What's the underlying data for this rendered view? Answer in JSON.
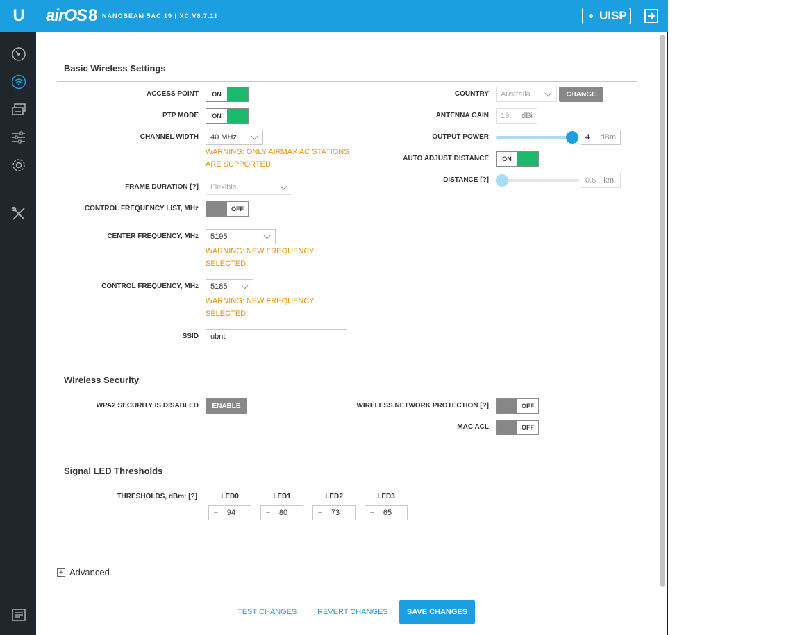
{
  "header": {
    "logo": "U",
    "brand": "airOS",
    "version": "8",
    "device": "NANOBEAM 5AC 19 | XC.V8.7.11",
    "uisp_label": "UISP",
    "icons": [
      "ubiquiti-logo-icon",
      "logout-icon"
    ]
  },
  "sidebar": {
    "items": [
      {
        "name": "dashboard",
        "icon": "gauge-icon"
      },
      {
        "name": "wireless",
        "icon": "wifi-icon"
      },
      {
        "name": "network",
        "icon": "network-icon"
      },
      {
        "name": "services",
        "icon": "sliders-icon"
      },
      {
        "name": "system",
        "icon": "gear-icon"
      },
      {
        "name": "tools",
        "icon": "tools-icon"
      },
      {
        "name": "log",
        "icon": "log-icon"
      }
    ]
  },
  "basic": {
    "title": "Basic Wireless Settings",
    "access_point_label": "ACCESS POINT",
    "access_point_state": "ON",
    "ptp_mode_label": "PTP MODE",
    "ptp_mode_state": "ON",
    "channel_width_label": "CHANNEL WIDTH",
    "channel_width_value": "40 MHz",
    "channel_width_warning_1": "WARNING: ONLY AIRMAX AC STATIONS",
    "channel_width_warning_2": "ARE SUPPORTED",
    "frame_duration_label": "FRAME DURATION [?]",
    "frame_duration_value": "Flexible",
    "cfl_label": "CONTROL FREQUENCY LIST, MHz",
    "cfl_state": "OFF",
    "center_freq_label": "CENTER FREQUENCY, MHz",
    "center_freq_value": "5195",
    "center_freq_warning_1": "WARNING: NEW FREQUENCY",
    "center_freq_warning_2": "SELECTED!",
    "control_freq_label": "CONTROL FREQUENCY, MHz",
    "control_freq_value": "5185",
    "control_freq_warning_1": "WARNING: NEW FREQUENCY",
    "control_freq_warning_2": "SELECTED!",
    "ssid_label": "SSID",
    "ssid_value": "ubnt",
    "country_label": "COUNTRY",
    "country_value": "Australia",
    "change_label": "CHANGE",
    "antenna_gain_label": "ANTENNA GAIN",
    "antenna_gain_value": "19",
    "antenna_gain_unit": "dBi",
    "output_power_label": "OUTPUT POWER",
    "output_power_value": "4",
    "output_power_unit": "dBm",
    "output_power_level": 1.0,
    "auto_adjust_label": "AUTO ADJUST DISTANCE",
    "auto_adjust_state": "ON",
    "distance_label": "DISTANCE [?]",
    "distance_value": "0.6",
    "distance_unit": "km.",
    "distance_level": 0.0
  },
  "security": {
    "title": "Wireless Security",
    "wpa2_label": "WPA2 SECURITY IS DISABLED",
    "enable_label": "ENABLE",
    "wnp_label": "WIRELESS NETWORK PROTECTION [?]",
    "wnp_state": "OFF",
    "mac_acl_label": "MAC ACL",
    "mac_acl_state": "OFF"
  },
  "led": {
    "title": "Signal LED Thresholds",
    "thresholds_label": "THRESHOLDS, dBm: [?]",
    "items": [
      {
        "name": "LED0",
        "sign": "−",
        "value": "94"
      },
      {
        "name": "LED1",
        "sign": "−",
        "value": "80"
      },
      {
        "name": "LED2",
        "sign": "−",
        "value": "73"
      },
      {
        "name": "LED3",
        "sign": "−",
        "value": "65"
      }
    ]
  },
  "advanced": {
    "label": "Advanced",
    "plus": "+"
  },
  "footer": {
    "test_label": "TEST CHANGES",
    "revert_label": "REVERT CHANGES",
    "save_label": "SAVE CHANGES"
  },
  "colors": {
    "accent": "#1b9fe0",
    "toggle_on": "#1bba6b",
    "toggle_off": "#878787",
    "warning": "#e6920d",
    "sidebar": "#21262c"
  }
}
